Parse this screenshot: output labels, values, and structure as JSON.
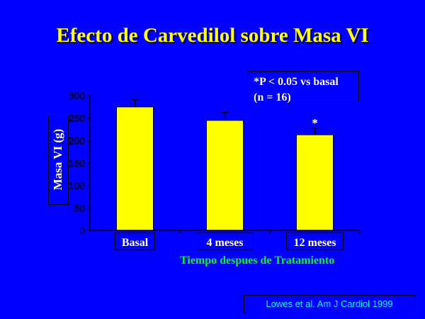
{
  "title": "Efecto de Carvedilol sobre Masa VI",
  "note": {
    "line1": "*P < 0.05 vs basal",
    "line2": "(n = 16)"
  },
  "source": "Lowes et al. Am J Cardiol 1999",
  "colors": {
    "background": "#0000ff",
    "title": "#ffff00",
    "bar": "#ffff00",
    "axis": "#000000",
    "xlabel": "#00ff00",
    "source": "#00ffff"
  },
  "chart_data": {
    "type": "bar",
    "title": "Efecto de Carvedilol sobre Masa VI",
    "xlabel": "Tiempo despues de Tratamiento",
    "ylabel": "Masa VI (g)",
    "categories": [
      "Basal",
      "4 meses",
      "12 meses"
    ],
    "values": [
      275,
      245,
      213
    ],
    "errors": [
      17,
      18,
      14
    ],
    "annotations": [
      "",
      "",
      "*"
    ],
    "ylim": [
      0,
      300
    ],
    "yticks": [
      0,
      50,
      100,
      150,
      200,
      250,
      300
    ],
    "grid": false,
    "legend": "none"
  }
}
